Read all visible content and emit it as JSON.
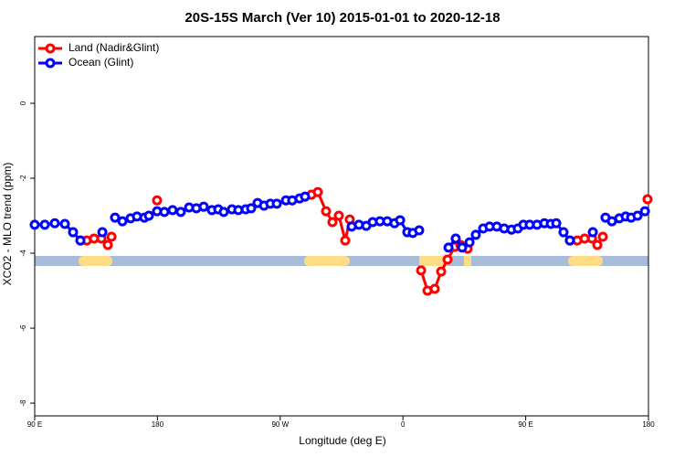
{
  "chart_data": {
    "type": "line",
    "title": "20S-15S March (Ver 10)   2015-01-01 to 2020-12-18",
    "x_label": "Longitude (deg E)",
    "y_label": "XCO2 - MLO trend (ppm)",
    "xlim": [
      90,
      540
    ],
    "ylim": [
      -8.34,
      1.78
    ],
    "xticks": [
      {
        "value": 90,
        "label": "90 E"
      },
      {
        "value": 180,
        "label": "180"
      },
      {
        "value": 270,
        "label": "90 W"
      },
      {
        "value": 360,
        "label": "0"
      },
      {
        "value": 450,
        "label": "90 E"
      },
      {
        "value": 540,
        "label": "180"
      }
    ],
    "yticks": [
      0,
      -2,
      -4,
      -6,
      -8
    ],
    "legend": "top-left",
    "series": [
      {
        "name": "Land (Nadir&Glint)",
        "color": "#ff0000",
        "x": [
          123.5,
          128.2,
          133.5,
          138.9,
          143.6,
          146.3,
          null,
          179.7,
          null,
          292.9,
          297.6,
          303.6,
          308.3,
          313,
          317.7,
          321,
          null,
          373.3,
          378,
          383.3,
          388,
          392.7,
          398,
          402.1,
          407.4,
          null,
          482.4,
          487.8,
          493.2,
          498.6,
          502.5,
          506.5,
          null,
          539.3
        ],
        "values": [
          -3.66,
          -3.66,
          -3.61,
          -3.61,
          -3.78,
          -3.56,
          null,
          -2.59,
          null,
          -2.44,
          -2.37,
          -2.88,
          -3.17,
          -3.0,
          -3.66,
          -3.1,
          null,
          -4.46,
          -5.0,
          -4.95,
          -4.49,
          -4.17,
          -3.83,
          -3.78,
          -3.88,
          null,
          -3.66,
          -3.66,
          -3.61,
          -3.61,
          -3.78,
          -3.56,
          null,
          -2.56
        ]
      },
      {
        "name": "Ocean (Glint)",
        "color": "#0000ff",
        "x": [
          90,
          97.4,
          104.7,
          112.1,
          118.1,
          123.5,
          null,
          139.6,
          null,
          148.9,
          154.3,
          160.3,
          165,
          170.4,
          173.7,
          179.7,
          185.1,
          191.1,
          197.1,
          203.2,
          208.5,
          213.9,
          219.9,
          224.6,
          228.6,
          234.6,
          239.3,
          244.7,
          248.7,
          253.4,
          258.1,
          262.8,
          267.5,
          274.2,
          278.8,
          284.2,
          288.2,
          null,
          322.4,
          327.7,
          333.1,
          337.8,
          343.1,
          348.5,
          353.8,
          357.9,
          363.2,
          367.2,
          371.9,
          null,
          393.4,
          398.7,
          403.4,
          408.8,
          413.4,
          418.8,
          423.5,
          428.8,
          434.2,
          439.6,
          444.2,
          448.3,
          452.9,
          458.3,
          463.7,
          468.4,
          472.4,
          477.7,
          482.4,
          null,
          499.2,
          null,
          508.5,
          513.2,
          518.6,
          523.3,
          527.3,
          532,
          537.4
        ],
        "values": [
          -3.24,
          -3.24,
          -3.2,
          -3.22,
          -3.44,
          -3.66,
          null,
          -3.44,
          null,
          -3.05,
          -3.15,
          -3.07,
          -3.02,
          -3.05,
          -3.0,
          -2.88,
          -2.9,
          -2.85,
          -2.9,
          -2.78,
          -2.8,
          -2.76,
          -2.85,
          -2.83,
          -2.9,
          -2.83,
          -2.85,
          -2.83,
          -2.8,
          -2.66,
          -2.73,
          -2.68,
          -2.68,
          -2.59,
          -2.59,
          -2.54,
          -2.49,
          null,
          -3.29,
          -3.24,
          -3.27,
          -3.17,
          -3.15,
          -3.15,
          -3.2,
          -3.12,
          -3.44,
          -3.46,
          -3.39,
          null,
          -3.85,
          -3.61,
          -3.85,
          -3.71,
          -3.51,
          -3.34,
          -3.29,
          -3.29,
          -3.34,
          -3.37,
          -3.34,
          -3.24,
          -3.24,
          -3.24,
          -3.2,
          -3.22,
          -3.2,
          -3.44,
          -3.66,
          null,
          -3.44,
          null,
          -3.05,
          -3.15,
          -3.07,
          -3.02,
          -3.05,
          -3.0,
          -2.88
        ]
      }
    ]
  }
}
